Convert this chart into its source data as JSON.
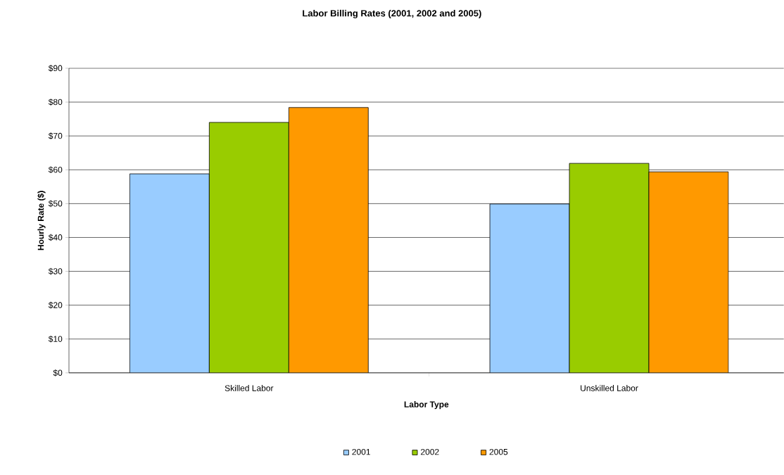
{
  "chart_data": {
    "type": "bar",
    "title": "Labor Billing Rates (2001, 2002 and 2005)",
    "xlabel": "Labor Type",
    "ylabel": "Hourly Rate ($)",
    "categories": [
      "Skilled Labor",
      "Unskilled Labor"
    ],
    "series": [
      {
        "name": "2001",
        "color": "#99ccff",
        "values": [
          58.8,
          49.9
        ]
      },
      {
        "name": "2002",
        "color": "#99cc00",
        "values": [
          74,
          61.9
        ]
      },
      {
        "name": "2005",
        "color": "#ff9900",
        "values": [
          78.4,
          59.4
        ]
      }
    ],
    "ylim": [
      0,
      90
    ],
    "yticks": [
      {
        "value": 0,
        "label": "$0"
      },
      {
        "value": 10,
        "label": "$10"
      },
      {
        "value": 20,
        "label": "$20"
      },
      {
        "value": 30,
        "label": "$30"
      },
      {
        "value": 40,
        "label": "$40"
      },
      {
        "value": 50,
        "label": "$50"
      },
      {
        "value": 60,
        "label": "$60"
      },
      {
        "value": 70,
        "label": "$70"
      },
      {
        "value": 80,
        "label": "$80"
      },
      {
        "value": 90,
        "label": "$90"
      }
    ],
    "grid": "y",
    "legend": "bottom"
  }
}
